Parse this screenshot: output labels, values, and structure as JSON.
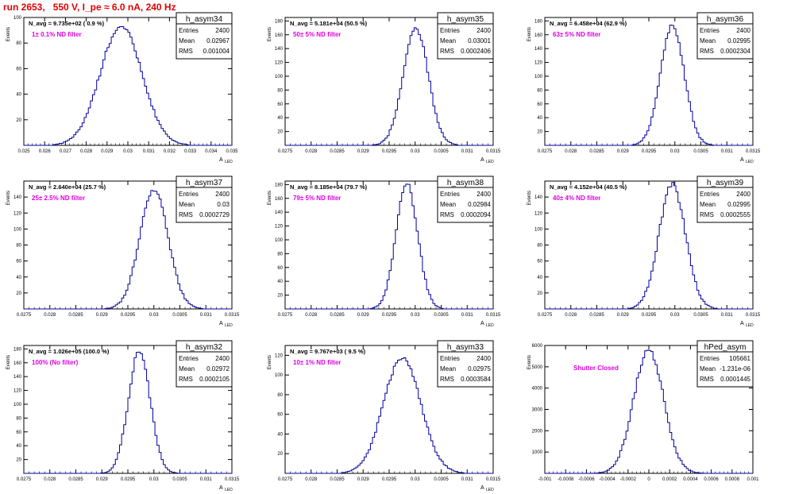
{
  "page": {
    "title": "run 2653,   550 V, I_pe ≈ 6.0 nA, 240 Hz"
  },
  "chart_data": [
    {
      "type": "histogram",
      "name": "h_asym34",
      "stats": {
        "Entries": "2400",
        "Mean": "0.02967",
        "RMS": "0.001004"
      },
      "navg": "N_avg = 9.735e+02 ( 0.9 %)",
      "filter": "1± 0.1% ND filter",
      "xlim": [
        0.025,
        0.035
      ],
      "ticks": [
        "0.025",
        "0.026",
        "0.027",
        "0.028",
        "0.029",
        "0.03",
        "0.031",
        "0.032",
        "0.033",
        "0.034",
        "0.035"
      ],
      "ylim": [
        0,
        100
      ],
      "yticks": [
        "20",
        "40",
        "60",
        "80",
        "100"
      ],
      "ytick_values": [
        20,
        40,
        60,
        80,
        100
      ],
      "xlabel": "A",
      "xlabel_sub": "LED",
      "ylabel": "Events",
      "mean": 0.02967,
      "sigma": 0.001004,
      "peak": 93
    },
    {
      "type": "histogram",
      "name": "h_asym35",
      "stats": {
        "Entries": "2400",
        "Mean": "0.03001",
        "RMS": "0.0002406"
      },
      "navg": "N_avg = 5.181e+04 (50.5 %)",
      "filter": "50± 5% ND filter",
      "xlim": [
        0.0275,
        0.0315
      ],
      "ticks": [
        "0.0275",
        "0.028",
        "0.0285",
        "0.029",
        "0.0295",
        "0.03",
        "0.0305",
        "0.031",
        "0.0315"
      ],
      "ylim": [
        0,
        185
      ],
      "yticks": [
        "20",
        "40",
        "60",
        "80",
        "100",
        "120",
        "140",
        "160",
        "180"
      ],
      "ytick_values": [
        20,
        40,
        60,
        80,
        100,
        120,
        140,
        160,
        180
      ],
      "xlabel": "A",
      "xlabel_sub": "LED",
      "ylabel": "Events",
      "mean": 0.03001,
      "sigma": 0.0002406,
      "peak": 170
    },
    {
      "type": "histogram",
      "name": "h_asym36",
      "stats": {
        "Entries": "2400",
        "Mean": "0.02995",
        "RMS": "0.0002304"
      },
      "navg": "N_avg = 6.458e+04 (62.9 %)",
      "filter": "63± 5% ND filter",
      "xlim": [
        0.0275,
        0.0315
      ],
      "ticks": [
        "0.0275",
        "0.028",
        "0.0285",
        "0.029",
        "0.0295",
        "0.03",
        "0.0305",
        "0.031",
        "0.0315"
      ],
      "ylim": [
        0,
        185
      ],
      "yticks": [
        "20",
        "40",
        "60",
        "80",
        "100",
        "120",
        "140",
        "160",
        "180"
      ],
      "ytick_values": [
        20,
        40,
        60,
        80,
        100,
        120,
        140,
        160,
        180
      ],
      "xlabel": "A",
      "xlabel_sub": "LED",
      "ylabel": "Events",
      "mean": 0.02995,
      "sigma": 0.0002304,
      "peak": 172
    },
    {
      "type": "histogram",
      "name": "h_asym37",
      "stats": {
        "Entries": "2400",
        "Mean": "0.03",
        "RMS": "0.0002729"
      },
      "navg": "N_avg = 2.640e+04 (25.7 %)",
      "filter": "25± 2.5% ND filter",
      "xlim": [
        0.0275,
        0.0315
      ],
      "ticks": [
        "0.0275",
        "0.028",
        "0.0285",
        "0.029",
        "0.0295",
        "0.03",
        "0.0305",
        "0.031",
        "0.0315"
      ],
      "ylim": [
        0,
        160
      ],
      "yticks": [
        "20",
        "40",
        "60",
        "80",
        "100",
        "120",
        "140"
      ],
      "ytick_values": [
        20,
        40,
        60,
        80,
        100,
        120,
        140
      ],
      "xlabel": "A",
      "xlabel_sub": "LED",
      "ylabel": "Events",
      "mean": 0.03,
      "sigma": 0.0002729,
      "peak": 150
    },
    {
      "type": "histogram",
      "name": "h_asym38",
      "stats": {
        "Entries": "2400",
        "Mean": "0.02984",
        "RMS": "0.0002094"
      },
      "navg": "N_avg = 8.185e+04 (79.7 %)",
      "filter": "79± 5% ND filter",
      "xlim": [
        0.0275,
        0.0315
      ],
      "ticks": [
        "0.0275",
        "0.028",
        "0.0285",
        "0.029",
        "0.0295",
        "0.03",
        "0.0305",
        "0.031",
        "0.0315"
      ],
      "ylim": [
        0,
        185
      ],
      "yticks": [
        "20",
        "40",
        "60",
        "80",
        "100",
        "120",
        "140",
        "160",
        "180"
      ],
      "ytick_values": [
        20,
        40,
        60,
        80,
        100,
        120,
        140,
        160,
        180
      ],
      "xlabel": "A",
      "xlabel_sub": "LED",
      "ylabel": "Events",
      "mean": 0.02984,
      "sigma": 0.0002094,
      "peak": 180
    },
    {
      "type": "histogram",
      "name": "h_asym39",
      "stats": {
        "Entries": "2400",
        "Mean": "0.02995",
        "RMS": "0.0002555"
      },
      "navg": "N_avg = 4.152e+04 (40.5 %)",
      "filter": "40± 4% ND filter",
      "xlim": [
        0.0275,
        0.0315
      ],
      "ticks": [
        "0.0275",
        "0.028",
        "0.0285",
        "0.029",
        "0.0295",
        "0.03",
        "0.0305",
        "0.031",
        "0.0315"
      ],
      "ylim": [
        0,
        160
      ],
      "yticks": [
        "20",
        "40",
        "60",
        "80",
        "100",
        "120",
        "140"
      ],
      "ytick_values": [
        20,
        40,
        60,
        80,
        100,
        120,
        140
      ],
      "xlabel": "A",
      "xlabel_sub": "LED",
      "ylabel": "Events",
      "mean": 0.02995,
      "sigma": 0.0002555,
      "peak": 155
    },
    {
      "type": "histogram",
      "name": "h_asym32",
      "stats": {
        "Entries": "2400",
        "Mean": "0.02972",
        "RMS": "0.0002105"
      },
      "navg": "N_avg = 1.026e+05 (100.0 %)",
      "filter": "100% (No filter)",
      "xlim": [
        0.0275,
        0.0315
      ],
      "ticks": [
        "0.0275",
        "0.028",
        "0.0285",
        "0.029",
        "0.0295",
        "0.03",
        "0.0305",
        "0.031",
        "0.0315"
      ],
      "ylim": [
        0,
        185
      ],
      "yticks": [
        "20",
        "40",
        "60",
        "80",
        "100",
        "120",
        "140",
        "160",
        "180"
      ],
      "ytick_values": [
        20,
        40,
        60,
        80,
        100,
        120,
        140,
        160,
        180
      ],
      "xlabel": "A",
      "xlabel_sub": "LED",
      "ylabel": "Events",
      "mean": 0.02972,
      "sigma": 0.0002105,
      "peak": 176
    },
    {
      "type": "histogram",
      "name": "h_asym33",
      "stats": {
        "Entries": "2400",
        "Mean": "0.02975",
        "RMS": "0.0003584"
      },
      "navg": "N_avg = 9.767e+03 ( 9.5 %)",
      "filter": "10± 1% ND filter",
      "xlim": [
        0.0275,
        0.0315
      ],
      "ticks": [
        "0.0275",
        "0.028",
        "0.0285",
        "0.029",
        "0.0295",
        "0.03",
        "0.0305",
        "0.031",
        "0.0315"
      ],
      "ylim": [
        0,
        130
      ],
      "yticks": [
        "20",
        "40",
        "60",
        "80",
        "100",
        "120"
      ],
      "ytick_values": [
        20,
        40,
        60,
        80,
        100,
        120
      ],
      "xlabel": "A",
      "xlabel_sub": "LED",
      "ylabel": "Events",
      "mean": 0.02975,
      "sigma": 0.0003584,
      "peak": 118
    },
    {
      "type": "histogram",
      "name": "hPed_asym",
      "stats": {
        "Entries": "105661",
        "Mean": "-1.231e-06",
        "RMS": "0.0001445"
      },
      "navg": "",
      "filter": "Shutter Closed",
      "xlim": [
        -0.001,
        0.001
      ],
      "ticks": [
        "-0.001",
        "-0.0008",
        "-0.0006",
        "-0.0004",
        "-0.0002",
        "0",
        "0.0002",
        "0.0004",
        "0.0006",
        "0.0008",
        "0.001"
      ],
      "ylim": [
        0,
        6000
      ],
      "yticks": [
        "1000",
        "2000",
        "3000",
        "4000",
        "5000",
        "6000"
      ],
      "ytick_values": [
        1000,
        2000,
        3000,
        4000,
        5000,
        6000
      ],
      "xlabel": "",
      "xlabel_sub": "",
      "ylabel": "Events",
      "mean": -1.231e-06,
      "sigma": 0.0001445,
      "peak": 5800
    }
  ]
}
